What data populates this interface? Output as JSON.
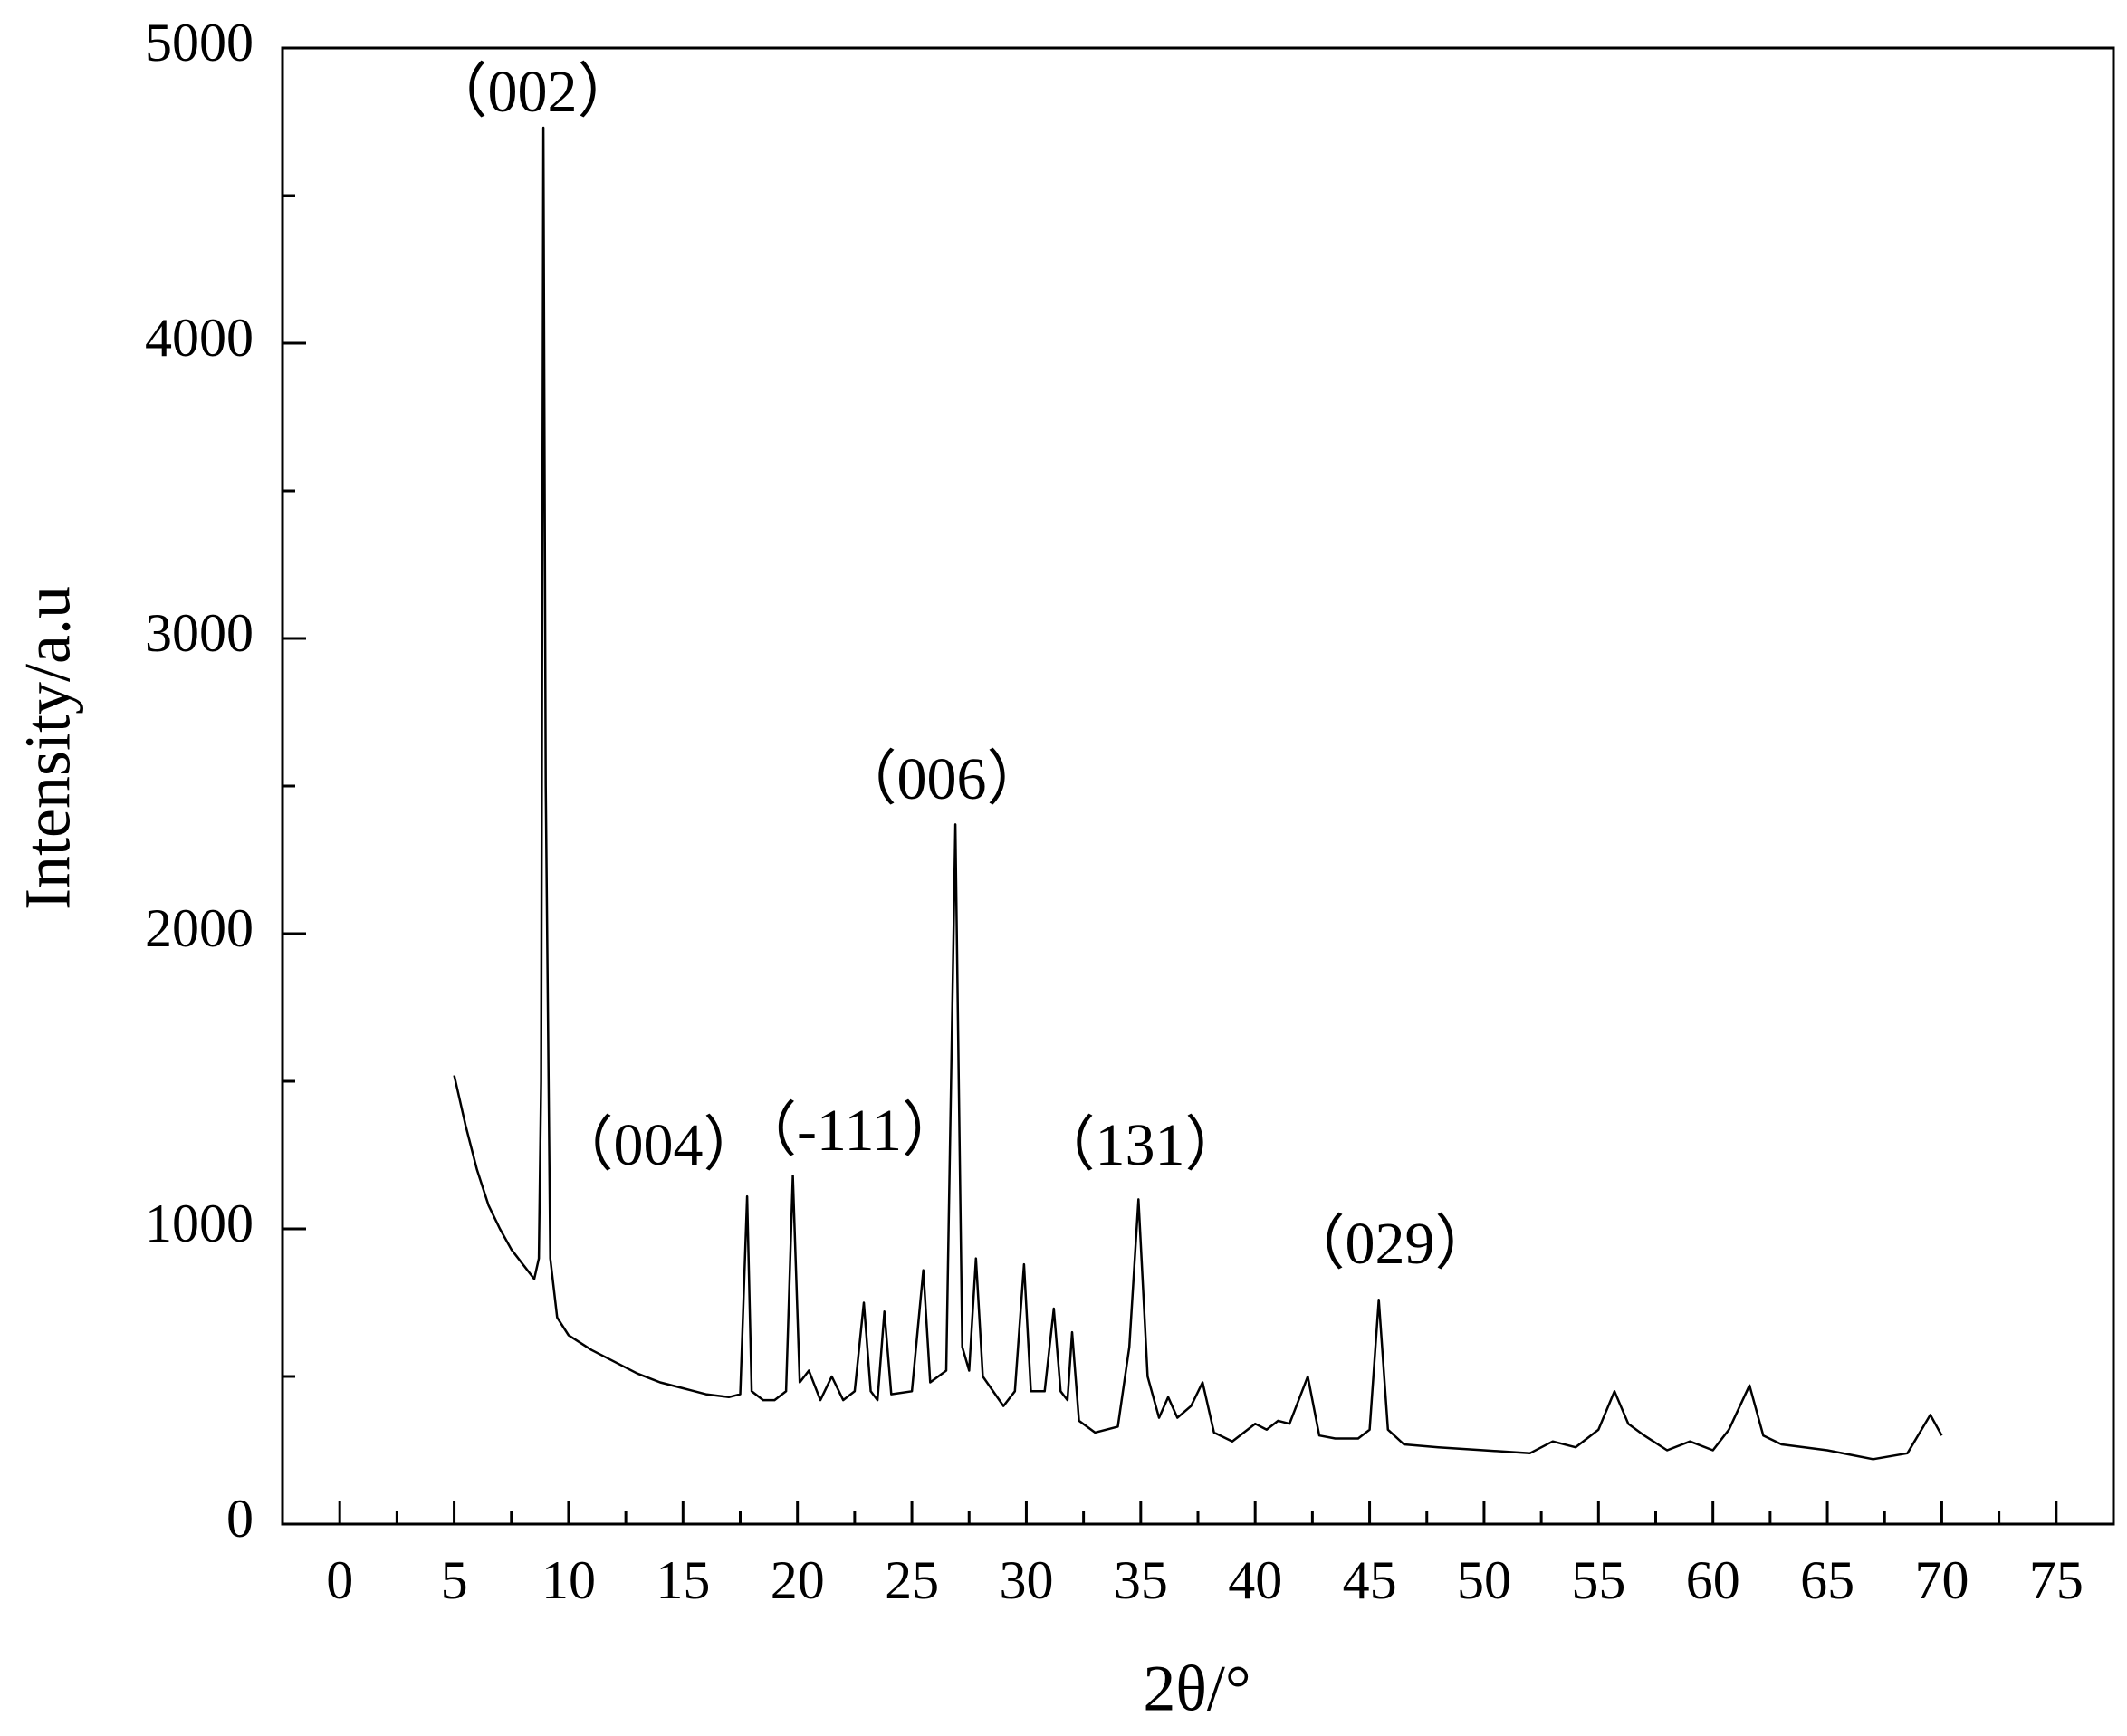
{
  "chart_data": {
    "type": "line",
    "x_label": "2θ/°",
    "y_label": "Intensity/a.u",
    "xlim": [
      -2.5,
      77.5
    ],
    "ylim": [
      0,
      5000
    ],
    "xticks": [
      0,
      5,
      10,
      15,
      20,
      25,
      30,
      35,
      40,
      45,
      50,
      55,
      60,
      65,
      70,
      75
    ],
    "xticks_minor": [
      2.5,
      7.5,
      12.5,
      17.5,
      22.5,
      27.5,
      32.5,
      37.5,
      42.5,
      47.5,
      52.5,
      57.5,
      62.5,
      67.5,
      72.5
    ],
    "yticks": [
      0,
      1000,
      2000,
      3000,
      4000,
      5000
    ],
    "yticks_minor": [
      500,
      1500,
      2500,
      3500,
      4500
    ],
    "annotations": [
      "（002）",
      "（004）",
      "（-111）",
      "（006）",
      "（131）",
      "（029）"
    ],
    "x": [
      5,
      5.5,
      6,
      6.5,
      7,
      7.5,
      8,
      8.5,
      8.7,
      8.8,
      8.9,
      9.0,
      9.2,
      9.5,
      10,
      11,
      12,
      13,
      14,
      15,
      16,
      17,
      17.5,
      17.8,
      18.0,
      18.5,
      19,
      19.5,
      19.8,
      20.1,
      20.5,
      21,
      21.5,
      22,
      22.5,
      22.9,
      23.2,
      23.5,
      23.8,
      24.1,
      25,
      25.5,
      25.8,
      26.5,
      26.9,
      27.2,
      27.5,
      27.8,
      28.1,
      29,
      29.5,
      29.9,
      30.2,
      30.8,
      31.2,
      31.5,
      31.8,
      32.0,
      32.3,
      33,
      34,
      34.5,
      34.9,
      35.3,
      35.8,
      36.2,
      36.6,
      37.2,
      37.7,
      38.2,
      39,
      40,
      40.5,
      41,
      41.5,
      42.3,
      42.8,
      43.5,
      44.5,
      45.0,
      45.4,
      45.8,
      46.5,
      48,
      50,
      52,
      53,
      54,
      55,
      55.7,
      56.3,
      57,
      58,
      59,
      60,
      60.7,
      61.6,
      62.2,
      63,
      65,
      67,
      68.5,
      69.5,
      70
    ],
    "series": [
      {
        "color": "#000000",
        "values": [
          1520,
          1350,
          1200,
          1080,
          1000,
          930,
          880,
          830,
          900,
          1500,
          4730,
          2500,
          900,
          700,
          640,
          590,
          550,
          510,
          480,
          460,
          440,
          430,
          440,
          1110,
          450,
          420,
          420,
          450,
          1180,
          480,
          520,
          420,
          500,
          420,
          450,
          750,
          450,
          420,
          720,
          440,
          450,
          860,
          480,
          520,
          2370,
          600,
          520,
          900,
          500,
          400,
          450,
          880,
          450,
          450,
          730,
          450,
          420,
          650,
          350,
          310,
          330,
          600,
          1100,
          500,
          360,
          430,
          360,
          400,
          480,
          310,
          280,
          340,
          320,
          350,
          340,
          500,
          300,
          290,
          290,
          320,
          760,
          320,
          270,
          260,
          250,
          240,
          280,
          260,
          320,
          450,
          340,
          300,
          250,
          280,
          250,
          320,
          470,
          300,
          270,
          250,
          220,
          240,
          370,
          300
        ]
      }
    ]
  }
}
